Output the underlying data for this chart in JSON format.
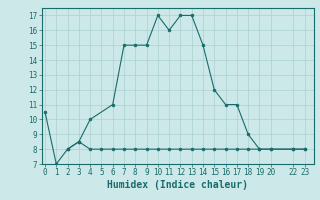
{
  "line1_x": [
    0,
    1,
    2,
    3,
    4,
    6,
    7,
    8,
    9,
    10,
    11,
    12,
    13,
    14,
    15,
    16,
    17,
    18,
    19,
    20,
    22,
    23
  ],
  "line1_y": [
    10.5,
    7,
    8,
    8.5,
    10,
    11,
    15,
    15,
    15,
    17,
    16,
    17,
    17,
    15,
    12,
    11,
    11,
    9,
    8,
    8,
    8,
    8
  ],
  "line2_x": [
    2,
    3,
    4,
    5,
    6,
    7,
    8,
    9,
    10,
    11,
    12,
    13,
    14,
    15,
    16,
    17,
    18,
    19,
    20,
    22,
    23
  ],
  "line2_y": [
    8,
    8.5,
    8,
    8,
    8,
    8,
    8,
    8,
    8,
    8,
    8,
    8,
    8,
    8,
    8,
    8,
    8,
    8,
    8,
    8,
    8
  ],
  "line_color": "#1a6b6b",
  "bg_color": "#cce8e8",
  "grid_color": "#aad0d0",
  "xlabel": "Humidex (Indice chaleur)",
  "yticks": [
    7,
    8,
    9,
    10,
    11,
    12,
    13,
    14,
    15,
    16,
    17
  ],
  "xticks": [
    0,
    1,
    2,
    3,
    4,
    5,
    6,
    7,
    8,
    9,
    10,
    11,
    12,
    13,
    14,
    15,
    16,
    17,
    18,
    19,
    20,
    22,
    23
  ],
  "xlim": [
    -0.3,
    23.8
  ],
  "ylim": [
    7,
    17.5
  ],
  "tick_fontsize": 5.5,
  "xlabel_fontsize": 7.0,
  "marker_size": 2.0,
  "line_width": 0.8
}
